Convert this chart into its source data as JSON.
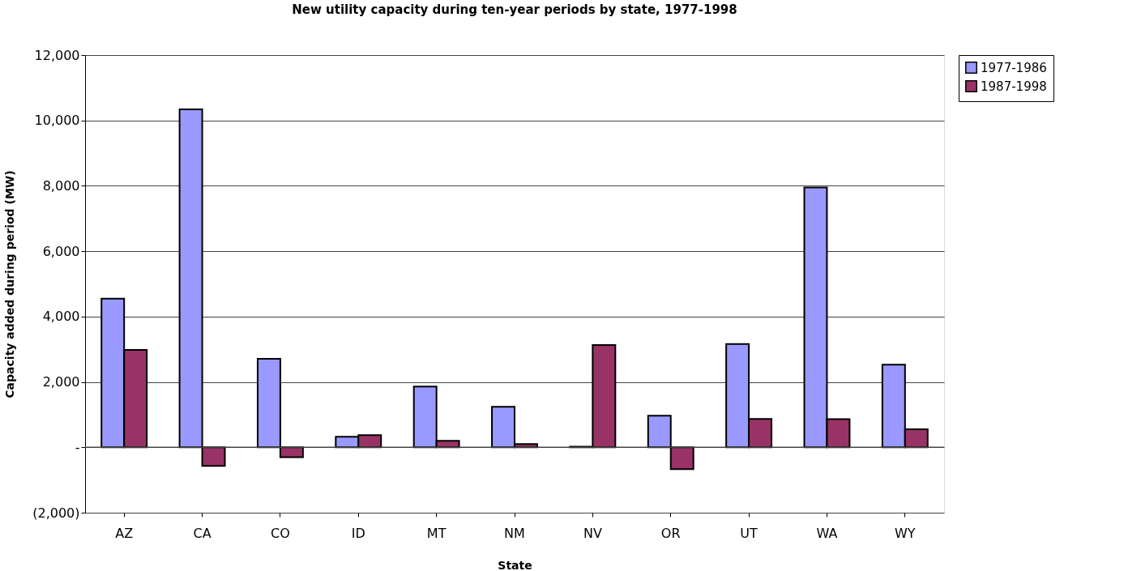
{
  "chart_data": {
    "type": "bar",
    "title": "New utility capacity during ten-year periods by state, 1977-1998",
    "xlabel": "State",
    "ylabel": "Capacity added during period (MW)",
    "categories": [
      "AZ",
      "CA",
      "CO",
      "ID",
      "MT",
      "NM",
      "NV",
      "OR",
      "UT",
      "WA",
      "WY"
    ],
    "series": [
      {
        "name": "1977-1986",
        "color": "#9999ff",
        "values": [
          4550,
          10340,
          2710,
          320,
          1860,
          1240,
          20,
          970,
          3160,
          7950,
          2530
        ]
      },
      {
        "name": "1987-1998",
        "color": "#993366",
        "values": [
          2980,
          -570,
          -300,
          370,
          200,
          100,
          3130,
          -670,
          870,
          860,
          550
        ]
      }
    ],
    "ylim": [
      -2000,
      12000
    ],
    "yticks": [
      {
        "value": -2000,
        "label": "(2,000)"
      },
      {
        "value": 0,
        "label": "-"
      },
      {
        "value": 2000,
        "label": "2,000"
      },
      {
        "value": 4000,
        "label": "4,000"
      },
      {
        "value": 6000,
        "label": "6,000"
      },
      {
        "value": 8000,
        "label": "8,000"
      },
      {
        "value": 10000,
        "label": "10,000"
      },
      {
        "value": 12000,
        "label": "12,000"
      }
    ],
    "grid": "y",
    "legend": "right"
  }
}
